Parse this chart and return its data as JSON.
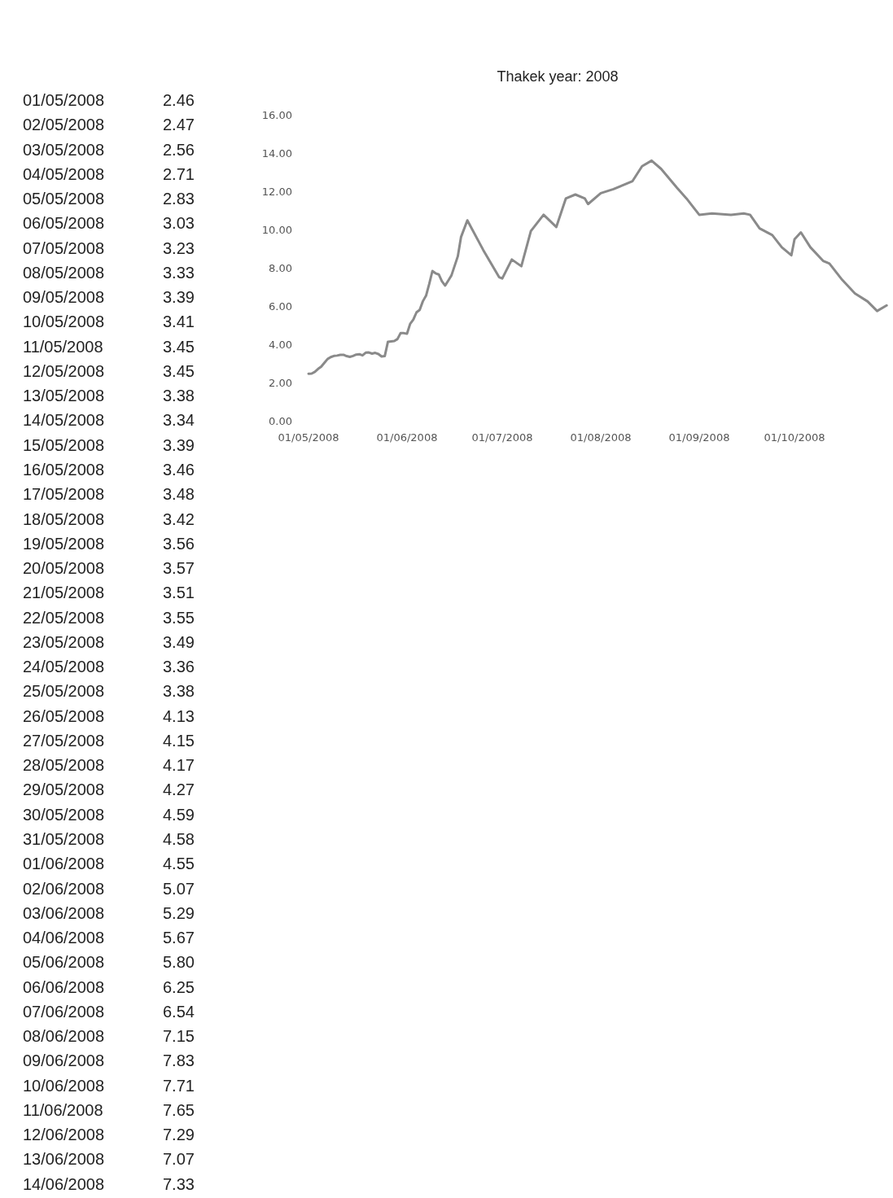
{
  "chart_data": [
    {
      "type": "other",
      "annotations": [
        "01/05/2008",
        "2.46",
        "02/05/2008",
        "2.47",
        "03/05/2008",
        "2.56",
        "04/05/2008",
        "2.71",
        "05/05/2008",
        "2.83",
        "06/05/2008",
        "3.03",
        "07/05/2008",
        "3.23",
        "08/05/2008",
        "3.33",
        "09/05/2008",
        "3.39",
        "10/05/2008",
        "3.41",
        "11/05/2008",
        "3.45",
        "12/05/2008",
        "3.45",
        "13/05/2008",
        "3.38",
        "14/05/2008",
        "3.34",
        "15/05/2008",
        "3.39",
        "16/05/2008",
        "3.46",
        "17/05/2008",
        "3.48",
        "18/05/2008",
        "3.42",
        "19/05/2008",
        "3.56",
        "20/05/2008",
        "3.57",
        "21/05/2008",
        "3.51",
        "22/05/2008",
        "3.55",
        "23/05/2008",
        "3.49",
        "24/05/2008",
        "3.36",
        "25/05/2008",
        "3.38",
        "26/05/2008",
        "4.13",
        "27/05/2008",
        "4.15",
        "28/05/2008",
        "4.17",
        "29/05/2008",
        "4.27",
        "30/05/2008",
        "4.59",
        "31/05/2008",
        "4.58",
        "01/06/2008",
        "4.55",
        "02/06/2008",
        "5.07",
        "03/06/2008",
        "5.29",
        "04/06/2008",
        "5.67",
        "05/06/2008",
        "5.80",
        "06/06/2008",
        "6.25",
        "07/06/2008",
        "6.54",
        "08/06/2008",
        "7.15",
        "09/06/2008",
        "7.83",
        "10/06/2008",
        "7.71",
        "11/06/2008",
        "7.65",
        "12/06/2008",
        "7.29",
        "13/06/2008",
        "7.07",
        "14/06/2008",
        "7.33"
      ]
    },
    {
      "type": "line",
      "title": "Thakek year: 2008",
      "x": [
        "2008-05-01",
        "2008-05-02",
        "2008-05-03",
        "2008-05-04",
        "2008-05-05",
        "2008-05-06",
        "2008-05-07",
        "2008-05-08",
        "2008-05-09",
        "2008-05-10",
        "2008-05-11",
        "2008-05-12",
        "2008-05-13",
        "2008-05-14",
        "2008-05-15",
        "2008-05-16",
        "2008-05-17",
        "2008-05-18",
        "2008-05-19",
        "2008-05-20",
        "2008-05-21",
        "2008-05-22",
        "2008-05-23",
        "2008-05-24",
        "2008-05-25",
        "2008-05-26",
        "2008-05-27",
        "2008-05-28",
        "2008-05-29",
        "2008-05-30",
        "2008-05-31",
        "2008-06-01",
        "2008-06-02",
        "2008-06-03",
        "2008-06-04",
        "2008-06-05",
        "2008-06-06",
        "2008-06-07",
        "2008-06-08",
        "2008-06-09",
        "2008-06-10",
        "2008-06-11",
        "2008-06-12",
        "2008-06-13",
        "2008-06-14",
        "2008-06-15",
        "2008-06-17",
        "2008-06-18",
        "2008-06-20",
        "2008-06-25",
        "2008-06-30",
        "2008-07-01",
        "2008-07-04",
        "2008-07-07",
        "2008-07-10",
        "2008-07-14",
        "2008-07-18",
        "2008-07-21",
        "2008-07-24",
        "2008-07-27",
        "2008-07-28",
        "2008-08-01",
        "2008-08-05",
        "2008-08-11",
        "2008-08-14",
        "2008-08-17",
        "2008-08-20",
        "2008-08-25",
        "2008-08-28",
        "2008-09-01",
        "2008-09-05",
        "2008-09-11",
        "2008-09-15",
        "2008-09-17",
        "2008-09-20",
        "2008-09-24",
        "2008-09-27",
        "2008-09-30",
        "2008-10-01",
        "2008-10-03",
        "2008-10-06",
        "2008-10-10",
        "2008-10-12",
        "2008-10-16",
        "2008-10-20",
        "2008-10-24",
        "2008-10-27",
        "2008-10-30"
      ],
      "series": [
        {
          "color": "#8a8a8a",
          "values": [
            2.46,
            2.47,
            2.56,
            2.71,
            2.83,
            3.03,
            3.23,
            3.33,
            3.39,
            3.41,
            3.45,
            3.45,
            3.38,
            3.34,
            3.39,
            3.46,
            3.48,
            3.42,
            3.56,
            3.57,
            3.51,
            3.55,
            3.49,
            3.36,
            3.38,
            4.13,
            4.15,
            4.17,
            4.27,
            4.59,
            4.58,
            4.55,
            5.07,
            5.29,
            5.67,
            5.8,
            6.25,
            6.54,
            7.15,
            7.83,
            7.71,
            7.65,
            7.29,
            7.07,
            7.33,
            7.6,
            8.6,
            9.6,
            10.48,
            8.93,
            7.51,
            7.44,
            8.43,
            8.08,
            9.92,
            10.77,
            10.13,
            11.62,
            11.83,
            11.62,
            11.33,
            11.9,
            12.11,
            12.53,
            13.31,
            13.6,
            13.17,
            12.18,
            11.62,
            10.77,
            10.84,
            10.77,
            10.84,
            10.77,
            10.06,
            9.71,
            9.07,
            8.65,
            9.49,
            9.85,
            9.07,
            8.36,
            8.22,
            7.37,
            6.66,
            6.24,
            5.74,
            6.03
          ]
        }
      ],
      "xlim": [
        "2008-05-01",
        "2008-11-01"
      ],
      "xticks": [
        {
          "value": "2008-05-01",
          "label": "01/05/2008"
        },
        {
          "value": "2008-06-01",
          "label": "01/06/2008"
        },
        {
          "value": "2008-07-01",
          "label": "01/07/2008"
        },
        {
          "value": "2008-08-01",
          "label": "01/08/2008"
        },
        {
          "value": "2008-09-01",
          "label": "01/09/2008"
        },
        {
          "value": "2008-10-01",
          "label": "01/10/2008"
        }
      ],
      "ylim": [
        0,
        16
      ],
      "yticks": [
        {
          "value": 0,
          "label": "0.00"
        },
        {
          "value": 2,
          "label": "2.00"
        },
        {
          "value": 4,
          "label": "4.00"
        },
        {
          "value": 6,
          "label": "6.00"
        },
        {
          "value": 8,
          "label": "8.00"
        },
        {
          "value": 10,
          "label": "10.00"
        },
        {
          "value": 12,
          "label": "12.00"
        },
        {
          "value": 14,
          "label": "14.00"
        },
        {
          "value": 16,
          "label": "16.00"
        }
      ],
      "grid": false,
      "marker": "none",
      "line_style": "solid"
    }
  ]
}
